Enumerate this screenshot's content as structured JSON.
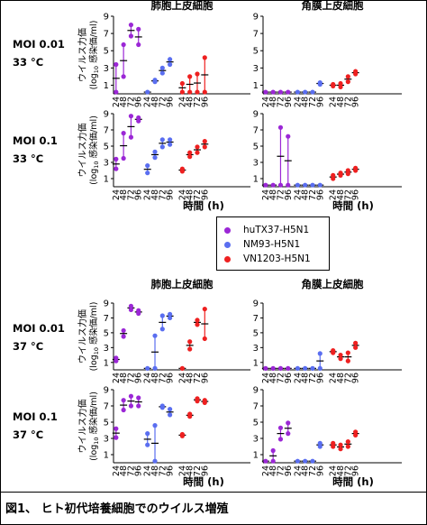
{
  "caption": "図1、 ヒト初代培養細胞でのウイルス増殖",
  "colors": {
    "huTX37-H5N1": "#9b27d6",
    "NM93-H5N1": "#5a6ef0",
    "VN1203-H5N1": "#ee2020"
  },
  "legend": [
    {
      "label": "huTX37-H5N1",
      "color": "#9b27d6"
    },
    {
      "label": "NM93-H5N1",
      "color": "#5a6ef0"
    },
    {
      "label": "VN1203-H5N1",
      "color": "#ee2020"
    }
  ],
  "row_labels": [
    [
      "MOI 0.01",
      "33 °C"
    ],
    [
      "MOI 0.1",
      "33 °C"
    ],
    [
      "MOI 0.01",
      "37 °C"
    ],
    [
      "MOI 0.1",
      "37 °C"
    ]
  ],
  "chart_data": {
    "type": "scatter",
    "panel_titles": [
      "肺胞上皮細胞",
      "角膜上皮細胞"
    ],
    "ylabel_line1": "ウイルス力価",
    "ylabel_line2_prefix": "(log",
    "ylabel_line2_sub": "10",
    "ylabel_line2_suffix": "感染価/ml)",
    "xlabel": "時間 (h)",
    "xticks": [
      "24",
      "48",
      "72",
      "96"
    ],
    "yticks": [
      "1",
      "3",
      "5",
      "7",
      "9"
    ],
    "ylim": [
      0,
      9
    ],
    "panels": [
      {
        "row": 0,
        "col": 0,
        "series": [
          {
            "name": "huTX37-H5N1",
            "points": [
              [
                24,
                [
                  3.4,
                  0.2
                ]
              ],
              [
                48,
                [
                  5.7,
                  2.0
                ]
              ],
              [
                72,
                [
                  8.0,
                  6.7
                ]
              ],
              [
                96,
                [
                  7.5,
                  5.7
                ]
              ]
            ]
          },
          {
            "name": "NM93-H5N1",
            "points": [
              [
                24,
                [
                  0.2,
                  0.2
                ]
              ],
              [
                48,
                [
                  1.6,
                  1.4
                ]
              ],
              [
                72,
                [
                  3.0,
                  2.4
                ]
              ],
              [
                96,
                [
                  4.0,
                  3.4
                ]
              ]
            ]
          },
          {
            "name": "VN1203-H5N1",
            "points": [
              [
                24,
                [
                  1.2,
                  0.2
                ]
              ],
              [
                48,
                [
                  2.0,
                  0.2
                ]
              ],
              [
                72,
                [
                  2.3,
                  0.2
                ]
              ],
              [
                96,
                [
                  4.2,
                  0.2
                ]
              ]
            ]
          }
        ]
      },
      {
        "row": 0,
        "col": 1,
        "series": [
          {
            "name": "huTX37-H5N1",
            "points": [
              [
                24,
                [
                  0.2,
                  0.2
                ]
              ],
              [
                48,
                [
                  0.2,
                  0.2
                ]
              ],
              [
                72,
                [
                  0.2,
                  0.2
                ]
              ],
              [
                96,
                [
                  0.2,
                  0.2
                ]
              ]
            ]
          },
          {
            "name": "NM93-H5N1",
            "points": [
              [
                24,
                [
                  0.2,
                  0.2
                ]
              ],
              [
                48,
                [
                  0.2,
                  0.2
                ]
              ],
              [
                72,
                [
                  0.2,
                  0.2
                ]
              ],
              [
                96,
                [
                  1.3,
                  1.1
                ]
              ]
            ]
          },
          {
            "name": "VN1203-H5N1",
            "points": [
              [
                24,
                [
                  1.1,
                  0.9
                ]
              ],
              [
                48,
                [
                  1.2,
                  0.8
                ]
              ],
              [
                72,
                [
                  2.0,
                  1.4
                ]
              ],
              [
                96,
                [
                  2.6,
                  2.3
                ]
              ]
            ]
          }
        ]
      },
      {
        "row": 1,
        "col": 0,
        "series": [
          {
            "name": "huTX37-H5N1",
            "points": [
              [
                24,
                [
                  3.4,
                  2.2
                ]
              ],
              [
                48,
                [
                  6.6,
                  3.5
                ]
              ],
              [
                72,
                [
                  8.7,
                  6.1
                ]
              ],
              [
                96,
                [
                  8.5,
                  8.1
                ]
              ]
            ]
          },
          {
            "name": "NM93-H5N1",
            "points": [
              [
                24,
                [
                  2.6,
                  1.7
                ]
              ],
              [
                48,
                [
                  4.3,
                  3.6
                ]
              ],
              [
                72,
                [
                  5.8,
                  4.9
                ]
              ],
              [
                96,
                [
                  5.8,
                  5.2
                ]
              ]
            ]
          },
          {
            "name": "VN1203-H5N1",
            "points": [
              [
                24,
                [
                  2.2,
                  1.9
                ]
              ],
              [
                48,
                [
                  4.2,
                  3.7
                ]
              ],
              [
                72,
                [
                  4.9,
                  4.2
                ]
              ],
              [
                96,
                [
                  5.6,
                  4.9
                ]
              ]
            ]
          }
        ]
      },
      {
        "row": 1,
        "col": 1,
        "series": [
          {
            "name": "huTX37-H5N1",
            "points": [
              [
                24,
                [
                  0.2,
                  0.2
                ]
              ],
              [
                48,
                [
                  0.2,
                  0.2
                ]
              ],
              [
                72,
                [
                  7.3,
                  0.2
                ]
              ],
              [
                96,
                [
                  6.2,
                  0.2
                ]
              ]
            ]
          },
          {
            "name": "NM93-H5N1",
            "points": [
              [
                24,
                [
                  0.2,
                  0.2
                ]
              ],
              [
                48,
                [
                  0.2,
                  0.2
                ]
              ],
              [
                72,
                [
                  0.2,
                  0.2
                ]
              ],
              [
                96,
                [
                  0.2,
                  0.2
                ]
              ]
            ]
          },
          {
            "name": "VN1203-H5N1",
            "points": [
              [
                24,
                [
                  1.4,
                  1.0
                ]
              ],
              [
                48,
                [
                  1.7,
                  1.4
                ]
              ],
              [
                72,
                [
                  2.0,
                  1.6
                ]
              ],
              [
                96,
                [
                  2.3,
                  2.0
                ]
              ]
            ]
          }
        ]
      },
      {
        "row": 2,
        "col": 0,
        "series": [
          {
            "name": "huTX37-H5N1",
            "points": [
              [
                24,
                [
                  1.6,
                  1.2
                ]
              ],
              [
                48,
                [
                  5.3,
                  4.5
                ]
              ],
              [
                72,
                [
                  8.6,
                  8.1
                ]
              ],
              [
                96,
                [
                  8.0,
                  7.6
                ]
              ]
            ]
          },
          {
            "name": "NM93-H5N1",
            "points": [
              [
                24,
                [
                  0.2,
                  0.2
                ]
              ],
              [
                48,
                [
                  4.6,
                  0.2
                ]
              ],
              [
                72,
                [
                  7.3,
                  5.5
                ]
              ],
              [
                96,
                [
                  7.5,
                  7.0
                ]
              ]
            ]
          },
          {
            "name": "VN1203-H5N1",
            "points": [
              [
                24,
                [
                  0.2,
                  0.2
                ]
              ],
              [
                48,
                [
                  3.8,
                  2.8
                ]
              ],
              [
                72,
                [
                  6.7,
                  6.1
                ]
              ],
              [
                96,
                [
                  8.2,
                  4.2
                ]
              ]
            ]
          }
        ]
      },
      {
        "row": 2,
        "col": 1,
        "series": [
          {
            "name": "huTX37-H5N1",
            "points": [
              [
                24,
                [
                  0.2,
                  0.2
                ]
              ],
              [
                48,
                [
                  0.2,
                  0.2
                ]
              ],
              [
                72,
                [
                  0.2,
                  0.2
                ]
              ],
              [
                96,
                [
                  0.2,
                  0.2
                ]
              ]
            ]
          },
          {
            "name": "NM93-H5N1",
            "points": [
              [
                24,
                [
                  0.2,
                  0.2
                ]
              ],
              [
                48,
                [
                  0.2,
                  0.2
                ]
              ],
              [
                72,
                [
                  0.2,
                  0.2
                ]
              ],
              [
                96,
                [
                  2.2,
                  0.2
                ]
              ]
            ]
          },
          {
            "name": "VN1203-H5N1",
            "points": [
              [
                24,
                [
                  2.6,
                  2.3
                ]
              ],
              [
                48,
                [
                  2.0,
                  1.5
                ]
              ],
              [
                72,
                [
                  2.3,
                  1.2
                ]
              ],
              [
                96,
                [
                  3.6,
                  3.0
                ]
              ]
            ]
          }
        ]
      },
      {
        "row": 3,
        "col": 0,
        "series": [
          {
            "name": "huTX37-H5N1",
            "points": [
              [
                24,
                [
                  4.2,
                  3.1
                ]
              ],
              [
                48,
                [
                  7.7,
                  6.5
                ]
              ],
              [
                72,
                [
                  8.2,
                  7.0
                ]
              ],
              [
                96,
                [
                  8.0,
                  7.0
                ]
              ]
            ]
          },
          {
            "name": "NM93-H5N1",
            "points": [
              [
                24,
                [
                  3.6,
                  2.2
                ]
              ],
              [
                48,
                [
                  4.6,
                  0.2
                ]
              ],
              [
                72,
                [
                  7.0,
                  6.8
                ]
              ],
              [
                96,
                [
                  6.6,
                  5.9
                ]
              ]
            ]
          },
          {
            "name": "VN1203-H5N1",
            "points": [
              [
                24,
                [
                  3.5,
                  3.3
                ]
              ],
              [
                48,
                [
                  6.0,
                  5.7
                ]
              ],
              [
                72,
                [
                  7.9,
                  7.6
                ]
              ],
              [
                96,
                [
                  7.7,
                  7.4
                ]
              ]
            ]
          }
        ]
      },
      {
        "row": 3,
        "col": 1,
        "series": [
          {
            "name": "huTX37-H5N1",
            "points": [
              [
                24,
                [
                  0.2,
                  0.2
                ]
              ],
              [
                48,
                [
                  1.5,
                  0.2
                ]
              ],
              [
                72,
                [
                  4.3,
                  2.9
                ]
              ],
              [
                96,
                [
                  4.9,
                  3.6
                ]
              ]
            ]
          },
          {
            "name": "NM93-H5N1",
            "points": [
              [
                24,
                [
                  0.2,
                  0.2
                ]
              ],
              [
                48,
                [
                  0.2,
                  0.2
                ]
              ],
              [
                72,
                [
                  0.2,
                  0.2
                ]
              ],
              [
                96,
                [
                  2.4,
                  2.0
                ]
              ]
            ]
          },
          {
            "name": "VN1203-H5N1",
            "points": [
              [
                24,
                [
                  2.4,
                  2.0
                ]
              ],
              [
                48,
                [
                  2.2,
                  1.7
                ]
              ],
              [
                72,
                [
                  2.6,
                  2.0
                ]
              ],
              [
                96,
                [
                  3.8,
                  3.4
                ]
              ]
            ]
          }
        ]
      }
    ]
  }
}
